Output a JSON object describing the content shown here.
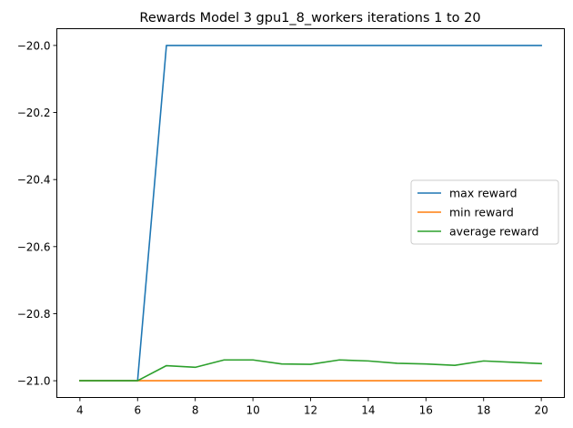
{
  "chart_data": {
    "type": "line",
    "title": "Rewards Model 3 gpu1_8_workers iterations 1 to 20",
    "xlabel": "",
    "ylabel": "",
    "x": [
      4,
      5,
      6,
      7,
      8,
      9,
      10,
      11,
      12,
      13,
      14,
      15,
      16,
      17,
      18,
      19,
      20
    ],
    "xlim": [
      3.2,
      20.8
    ],
    "ylim": [
      -21.05,
      -19.95
    ],
    "xticks": [
      4,
      6,
      8,
      10,
      12,
      14,
      16,
      18,
      20
    ],
    "xtick_labels": [
      "4",
      "6",
      "8",
      "10",
      "12",
      "14",
      "16",
      "18",
      "20"
    ],
    "yticks": [
      -21.0,
      -20.8,
      -20.6,
      -20.4,
      -20.2,
      -20.0
    ],
    "ytick_labels": [
      "−21.0",
      "−20.8",
      "−20.6",
      "−20.4",
      "−20.2",
      "−20.0"
    ],
    "grid": false,
    "legend_position": "center-right",
    "series": [
      {
        "name": "max reward",
        "color": "#1f77b4",
        "values": [
          -21.0,
          -21.0,
          -21.0,
          -20.0,
          -20.0,
          -20.0,
          -20.0,
          -20.0,
          -20.0,
          -20.0,
          -20.0,
          -20.0,
          -20.0,
          -20.0,
          -20.0,
          -20.0,
          -20.0
        ]
      },
      {
        "name": "min reward",
        "color": "#ff7f0e",
        "values": [
          -21.0,
          -21.0,
          -21.0,
          -21.0,
          -21.0,
          -21.0,
          -21.0,
          -21.0,
          -21.0,
          -21.0,
          -21.0,
          -21.0,
          -21.0,
          -21.0,
          -21.0,
          -21.0,
          -21.0
        ]
      },
      {
        "name": "average reward",
        "color": "#2ca02c",
        "values": [
          -21.0,
          -21.0,
          -21.0,
          -20.955,
          -20.96,
          -20.938,
          -20.938,
          -20.95,
          -20.951,
          -20.938,
          -20.941,
          -20.948,
          -20.95,
          -20.954,
          -20.941,
          -20.945,
          -20.949
        ]
      }
    ]
  }
}
